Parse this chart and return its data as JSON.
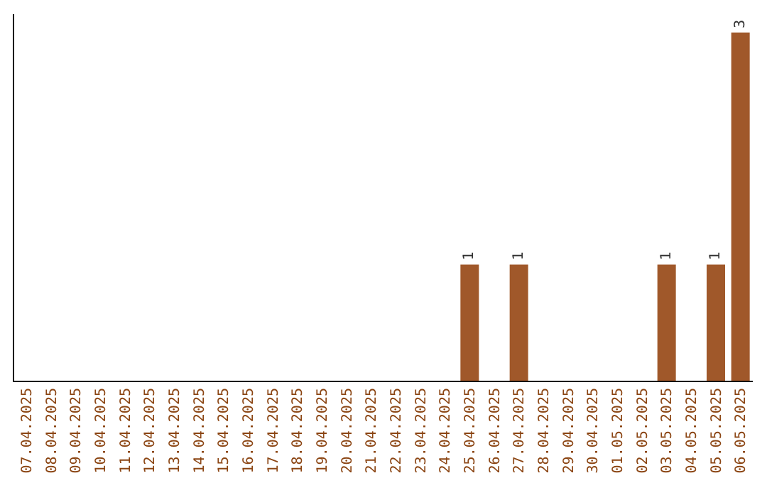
{
  "chart_data": {
    "type": "bar",
    "categories": [
      "07.04.2025",
      "08.04.2025",
      "09.04.2025",
      "10.04.2025",
      "11.04.2025",
      "12.04.2025",
      "13.04.2025",
      "14.04.2025",
      "15.04.2025",
      "16.04.2025",
      "17.04.2025",
      "18.04.2025",
      "19.04.2025",
      "20.04.2025",
      "21.04.2025",
      "22.04.2025",
      "23.04.2025",
      "24.04.2025",
      "25.04.2025",
      "26.04.2025",
      "27.04.2025",
      "28.04.2025",
      "29.04.2025",
      "30.04.2025",
      "01.05.2025",
      "02.05.2025",
      "03.05.2025",
      "04.05.2025",
      "05.05.2025",
      "06.05.2025"
    ],
    "values": [
      null,
      null,
      null,
      null,
      null,
      null,
      null,
      null,
      null,
      null,
      null,
      null,
      null,
      null,
      null,
      null,
      null,
      null,
      1,
      null,
      1,
      null,
      null,
      null,
      null,
      null,
      1,
      null,
      1,
      3
    ],
    "data_labels": true,
    "color": "#a0582a",
    "tick_labels": "x",
    "grid": false,
    "legend": false
  }
}
